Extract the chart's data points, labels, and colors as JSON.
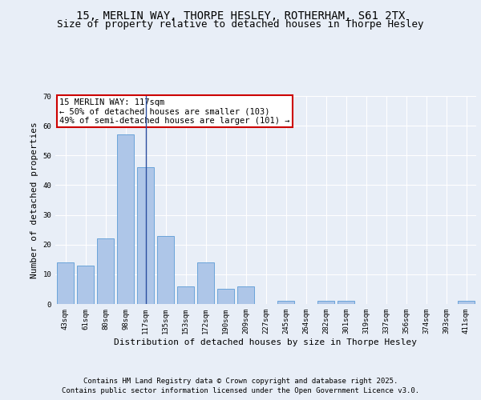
{
  "title1": "15, MERLIN WAY, THORPE HESLEY, ROTHERHAM, S61 2TX",
  "title2": "Size of property relative to detached houses in Thorpe Hesley",
  "xlabel": "Distribution of detached houses by size in Thorpe Hesley",
  "ylabel": "Number of detached properties",
  "categories": [
    "43sqm",
    "61sqm",
    "80sqm",
    "98sqm",
    "117sqm",
    "135sqm",
    "153sqm",
    "172sqm",
    "190sqm",
    "209sqm",
    "227sqm",
    "245sqm",
    "264sqm",
    "282sqm",
    "301sqm",
    "319sqm",
    "337sqm",
    "356sqm",
    "374sqm",
    "393sqm",
    "411sqm"
  ],
  "values": [
    14,
    13,
    22,
    57,
    46,
    23,
    6,
    14,
    5,
    6,
    0,
    1,
    0,
    1,
    1,
    0,
    0,
    0,
    0,
    0,
    1
  ],
  "bar_color": "#aec6e8",
  "bar_edge_color": "#5b9bd5",
  "highlight_line_index": 4,
  "highlight_line_color": "#2b4fa0",
  "annotation_text": "15 MERLIN WAY: 117sqm\n← 50% of detached houses are smaller (103)\n49% of semi-detached houses are larger (101) →",
  "annotation_box_color": "#ffffff",
  "annotation_box_edge_color": "#cc0000",
  "ylim": [
    0,
    70
  ],
  "yticks": [
    0,
    10,
    20,
    30,
    40,
    50,
    60,
    70
  ],
  "background_color": "#e8eef7",
  "plot_background_color": "#e8eef7",
  "grid_color": "#ffffff",
  "footer_line1": "Contains HM Land Registry data © Crown copyright and database right 2025.",
  "footer_line2": "Contains public sector information licensed under the Open Government Licence v3.0.",
  "title_fontsize": 10,
  "subtitle_fontsize": 9,
  "axis_label_fontsize": 8,
  "tick_fontsize": 6.5,
  "annotation_fontsize": 7.5,
  "footer_fontsize": 6.5
}
